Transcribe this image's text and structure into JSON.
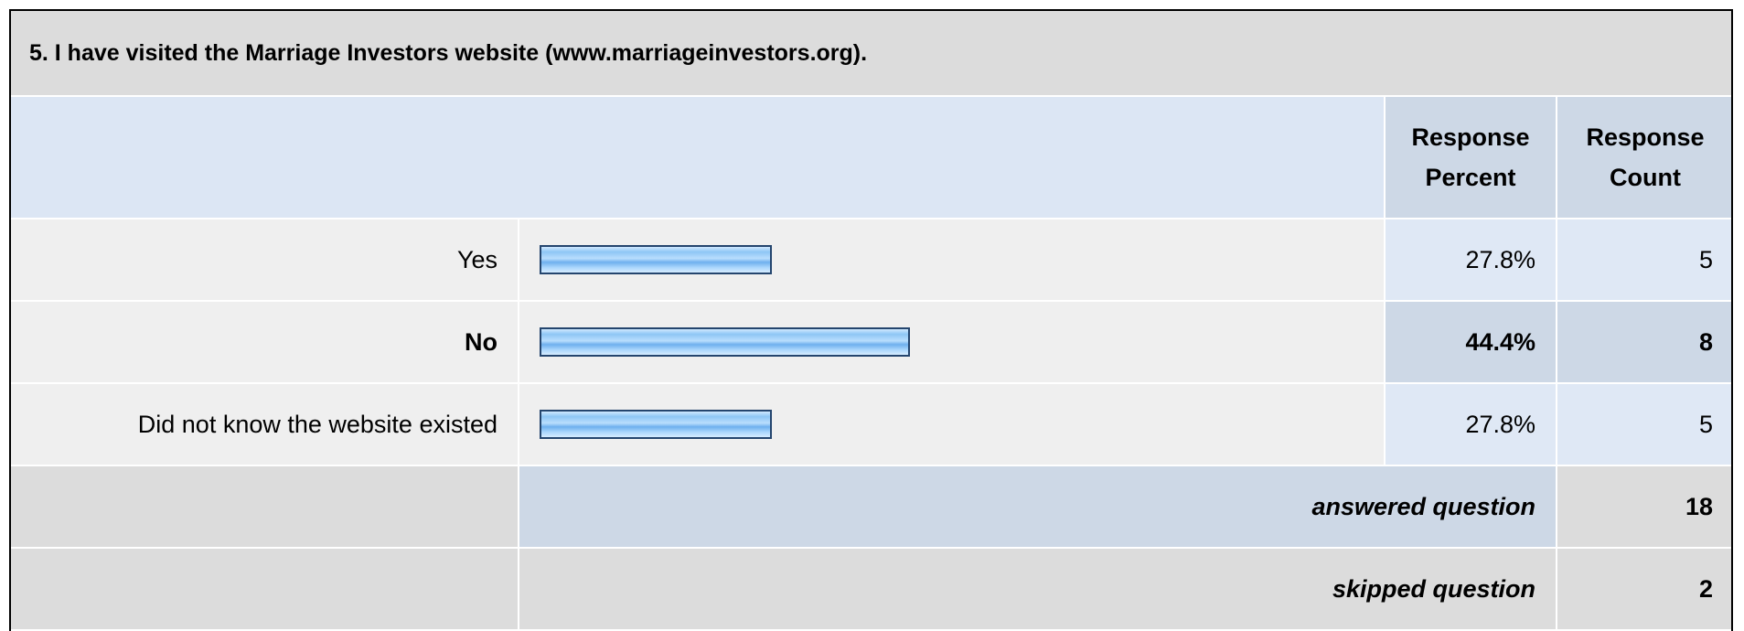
{
  "question": {
    "title": "5. I have visited the Marriage Investors website (www.marriageinvestors.org).",
    "headers": [
      "Response Percent",
      "Response Count"
    ],
    "rows": [
      {
        "label": "Yes",
        "percent": 27.8,
        "percent_label": "27.8%",
        "count": 5,
        "bold": false
      },
      {
        "label": "No",
        "percent": 44.4,
        "percent_label": "44.4%",
        "count": 8,
        "bold": true
      },
      {
        "label": "Did not know the website existed",
        "percent": 27.8,
        "percent_label": "27.8%",
        "count": 5,
        "bold": false
      }
    ],
    "answered": {
      "label": "answered question",
      "count": 18
    },
    "skipped": {
      "label": "skipped question",
      "count": 2
    }
  }
}
